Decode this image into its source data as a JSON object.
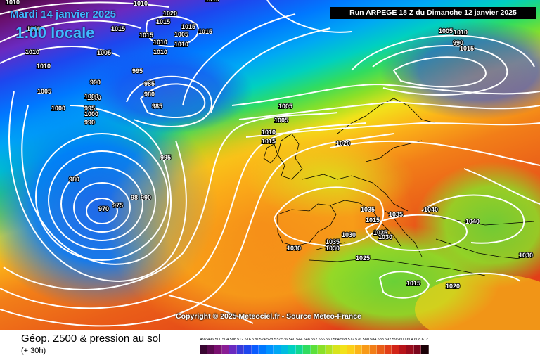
{
  "header": {
    "date": "Mardi 14 janvier 2025",
    "time": "1:00 locale",
    "run": "Run ARPEGE 18 Z du Dimanche 12 janvier 2025"
  },
  "copyright": "Copyright © 2025 Meteociel.fr - Source Meteo-France",
  "footer": {
    "title": "Géop. Z500 & pression au sol",
    "step": "(+ 30h)"
  },
  "colors": {
    "geopotential_low": "#5c0a5e",
    "geopotential_high": "#e63318",
    "isobars": "#ffffff",
    "coastlines": "#000000"
  },
  "legend": {
    "ticks": [
      "492",
      "496",
      "500",
      "504",
      "508",
      "512",
      "516",
      "520",
      "524",
      "528",
      "532",
      "536",
      "540",
      "544",
      "548",
      "552",
      "556",
      "560",
      "564",
      "568",
      "572",
      "576",
      "580",
      "584",
      "588",
      "592",
      "596",
      "600",
      "604",
      "608",
      "612"
    ],
    "colors": [
      "#3a0632",
      "#5a0a4e",
      "#7a1070",
      "#8a1d95",
      "#6a2ac0",
      "#3a3ad8",
      "#1e46ee",
      "#0a5cff",
      "#0078ff",
      "#0092ff",
      "#00a8f4",
      "#00bce0",
      "#00d0c0",
      "#10d890",
      "#30dc60",
      "#5ce03a",
      "#8ae028",
      "#b2e220",
      "#d8e41c",
      "#f2e21a",
      "#fcd018",
      "#fcb418",
      "#f89a18",
      "#f27e18",
      "#ea5e18",
      "#e23e18",
      "#d22418",
      "#b8141a",
      "#9a0c1c",
      "#7a061c",
      "#1a0006"
    ]
  },
  "isobars": {
    "labels": [
      "1010",
      "1020",
      "1010",
      "1015",
      "1010",
      "1015",
      "1015",
      "1015",
      "1005",
      "1010",
      "1010",
      "1005",
      "1010",
      "1015",
      "1010",
      "1010",
      "1005",
      "1005",
      "1010",
      "1015",
      "1010",
      "995",
      "990",
      "985",
      "1005",
      "980",
      "990",
      "1000",
      "985",
      "995",
      "1000",
      "990",
      "1000",
      "1005",
      "1010",
      "1015",
      "1020",
      "995",
      "980",
      "970",
      "975",
      "98",
      "990",
      "1035",
      "1030",
      "1030",
      "1035",
      "1035",
      "1030",
      "1025",
      "1030",
      "1015",
      "1035",
      "1040",
      "1040",
      "1030",
      "1015",
      "1020",
      "1000"
    ]
  }
}
